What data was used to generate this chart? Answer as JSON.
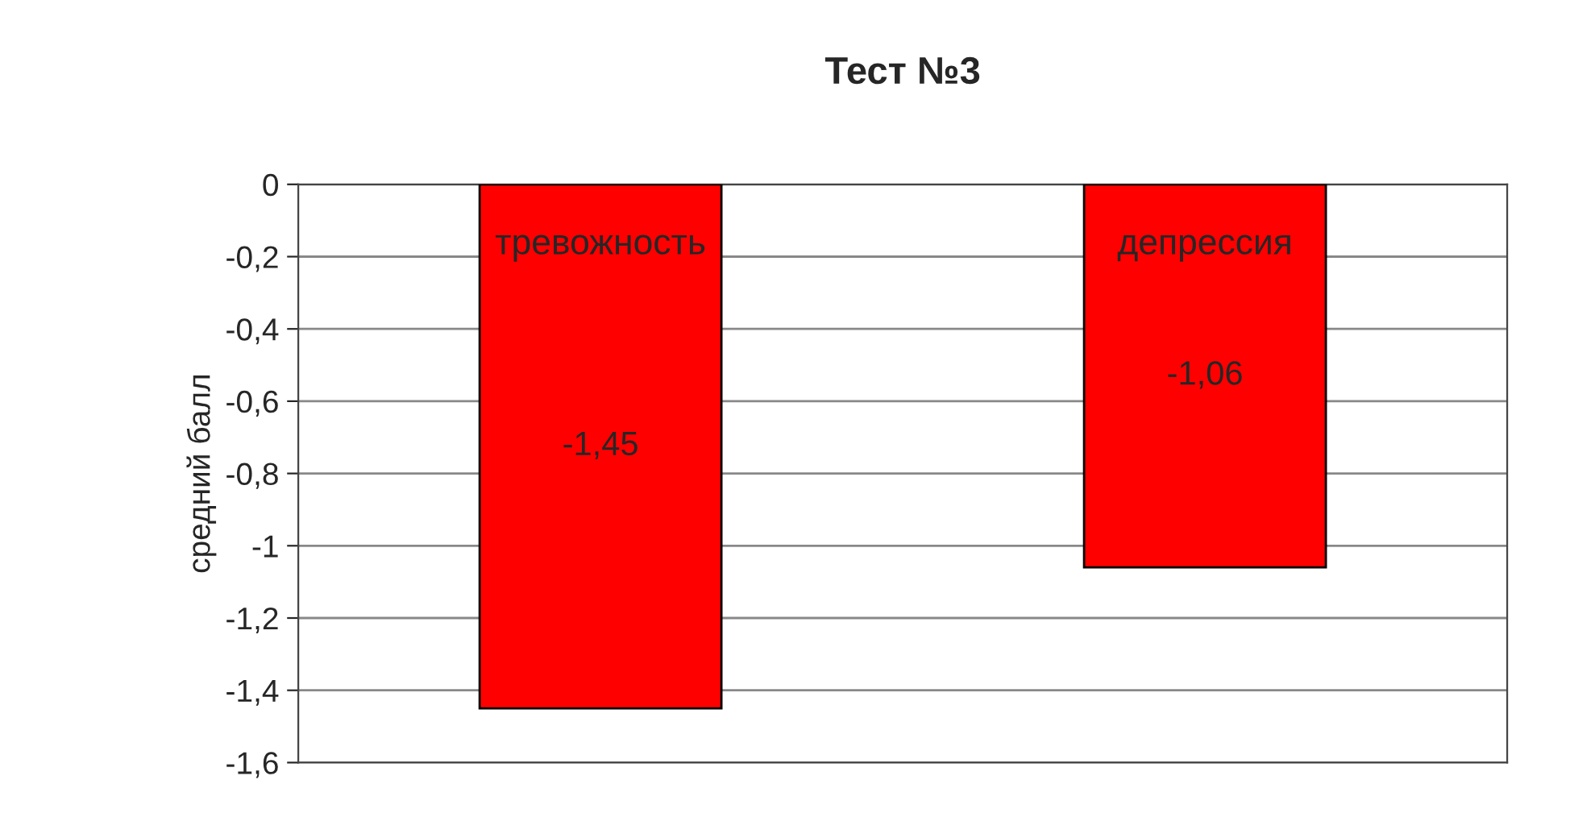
{
  "chart_data": {
    "type": "bar",
    "title": "Тест №3",
    "ylabel": "средний балл",
    "categories": [
      "тревожность",
      "депрессия"
    ],
    "values": [
      -1.45,
      -1.06
    ],
    "color": "#ff0000",
    "value_labels": [
      "-1,45",
      "-1,06"
    ],
    "ylim": [
      -1.6,
      0
    ],
    "yticks": [
      0,
      {
        "value": -0.2,
        "label": "-0,2"
      },
      {
        "value": -0.4,
        "label": "-0,4"
      },
      {
        "value": -0.6,
        "label": "-0,6"
      },
      {
        "value": -0.8,
        "label": "-0,8"
      },
      -1,
      {
        "value": -1.2,
        "label": "-1,2"
      },
      {
        "value": -1.4,
        "label": "-1,4"
      },
      {
        "value": -1.6,
        "label": "-1,6"
      }
    ],
    "grid": "y"
  }
}
